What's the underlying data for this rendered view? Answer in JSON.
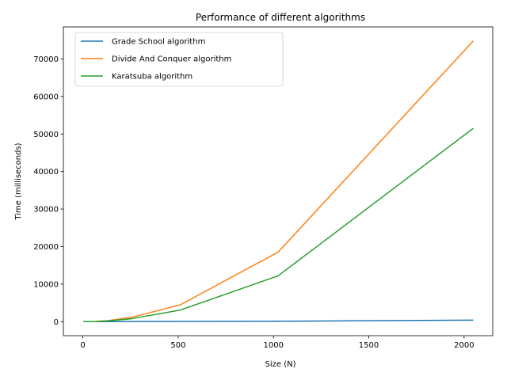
{
  "chart_data": {
    "type": "line",
    "title": "Performance of different algorithms",
    "xlabel": "Size (N)",
    "ylabel": "Time (milliseconds)",
    "xlim": [
      -102.3,
      2150.3
    ],
    "ylim": [
      -3740,
      78536
    ],
    "xticks": [
      0,
      500,
      1000,
      1500,
      2000
    ],
    "yticks": [
      0,
      10000,
      20000,
      30000,
      40000,
      50000,
      60000,
      70000
    ],
    "grid": false,
    "legend_position": "top-left",
    "x": [
      2,
      4,
      8,
      16,
      32,
      64,
      128,
      256,
      512,
      1024,
      2048
    ],
    "series": [
      {
        "name": "Grade School algorithm",
        "color": "#1f77b4",
        "values": [
          0,
          0,
          0,
          1,
          2,
          4,
          8,
          20,
          50,
          110,
          400
        ]
      },
      {
        "name": "Divide And Conquer algorithm",
        "color": "#ff7f0e",
        "values": [
          0,
          0,
          1,
          3,
          10,
          40,
          250,
          1150,
          4500,
          18500,
          74800
        ]
      },
      {
        "name": "Karatsuba algorithm",
        "color": "#2ca02c",
        "values": [
          0,
          0,
          1,
          3,
          8,
          30,
          180,
          780,
          3100,
          12200,
          51500
        ]
      }
    ]
  }
}
